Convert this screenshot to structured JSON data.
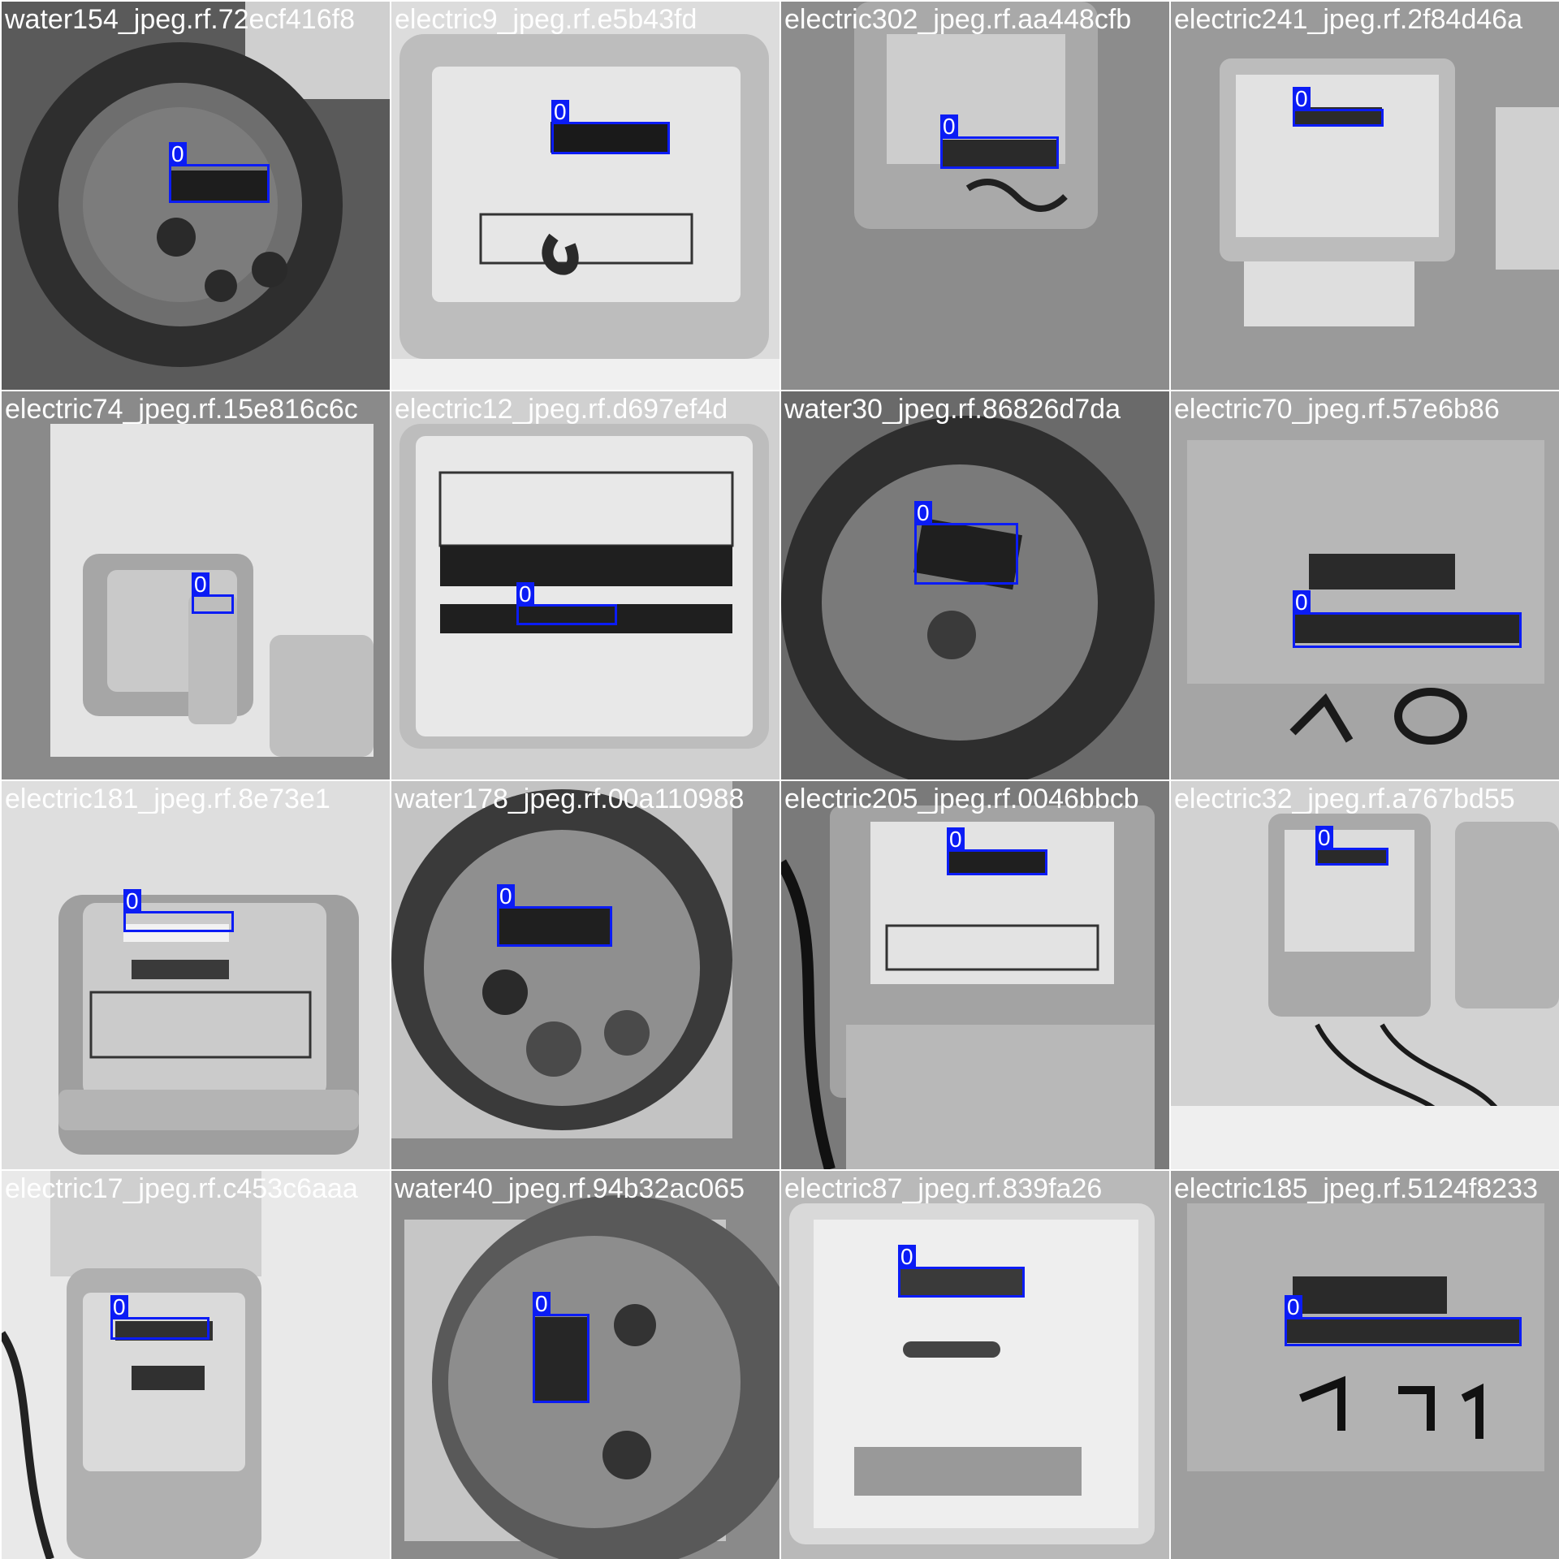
{
  "detection_color": "#0b1cf5",
  "tiles": [
    {
      "filename": "water154_jpeg.rf.72ecf416f8",
      "class_label": "0",
      "meter_type": "water"
    },
    {
      "filename": "electric9_jpeg.rf.e5b43fd",
      "class_label": "0",
      "meter_type": "electric"
    },
    {
      "filename": "electric302_jpeg.rf.aa448cfb",
      "class_label": "0",
      "meter_type": "electric"
    },
    {
      "filename": "electric241_jpeg.rf.2f84d46a",
      "class_label": "0",
      "meter_type": "electric"
    },
    {
      "filename": "electric74_jpeg.rf.15e816c6c",
      "class_label": "0",
      "meter_type": "electric"
    },
    {
      "filename": "electric12_jpeg.rf.d697ef4d",
      "class_label": "0",
      "meter_type": "electric"
    },
    {
      "filename": "water30_jpeg.rf.86826d7da",
      "class_label": "0",
      "meter_type": "water"
    },
    {
      "filename": "electric70_jpeg.rf.57e6b86",
      "class_label": "0",
      "meter_type": "electric"
    },
    {
      "filename": "electric181_jpeg.rf.8e73e1",
      "class_label": "0",
      "meter_type": "electric"
    },
    {
      "filename": "water178_jpeg.rf.00a110988",
      "class_label": "0",
      "meter_type": "water"
    },
    {
      "filename": "electric205_jpeg.rf.0046bbcb",
      "class_label": "0",
      "meter_type": "electric"
    },
    {
      "filename": "electric32_jpeg.rf.a767bd55",
      "class_label": "0",
      "meter_type": "electric"
    },
    {
      "filename": "electric17_jpeg.rf.c453c6aaa",
      "class_label": "0",
      "meter_type": "electric"
    },
    {
      "filename": "water40_jpeg.rf.94b32ac065",
      "class_label": "0",
      "meter_type": "water"
    },
    {
      "filename": "electric87_jpeg.rf.839fa26",
      "class_label": "0",
      "meter_type": "electric"
    },
    {
      "filename": "electric185_jpeg.rf.5124f8233",
      "class_label": "0",
      "meter_type": "electric"
    }
  ]
}
